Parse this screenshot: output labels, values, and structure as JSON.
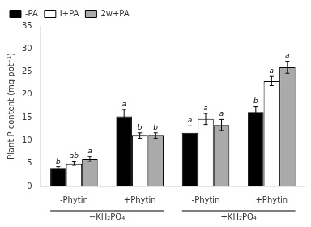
{
  "chart_data": {
    "type": "bar",
    "categories": [
      "-Phytin",
      "+Phytin",
      "-Phytin",
      "+Phytin"
    ],
    "category_groups": [
      "−KH₂PO₄",
      "+KH₂PO₄"
    ],
    "series": [
      {
        "name": "-PA",
        "color": "black",
        "values": [
          4.0,
          15.3,
          11.7,
          16.2
        ],
        "errors": [
          0.3,
          1.5,
          1.5,
          1.2
        ],
        "annotations": [
          "b",
          "a",
          "a",
          "b"
        ]
      },
      {
        "name": "I+PA",
        "color": "white",
        "values": [
          5.0,
          11.1,
          14.7,
          23.0
        ],
        "errors": [
          0.4,
          0.6,
          1.2,
          1.0
        ],
        "annotations": [
          "ab",
          "b",
          "a",
          "a"
        ]
      },
      {
        "name": "2w+PA",
        "color": "#aaaaaa",
        "values": [
          6.0,
          11.1,
          13.4,
          26.0
        ],
        "errors": [
          0.5,
          0.6,
          1.2,
          1.3
        ],
        "annotations": [
          "a",
          "b",
          "a",
          "a"
        ]
      }
    ],
    "ylabel": "Plant P content (mg pot⁻¹)",
    "ylim": [
      0,
      35
    ],
    "yticks": [
      0,
      5,
      10,
      15,
      20,
      25,
      30,
      35
    ],
    "grid": false,
    "legend": "upper left"
  }
}
